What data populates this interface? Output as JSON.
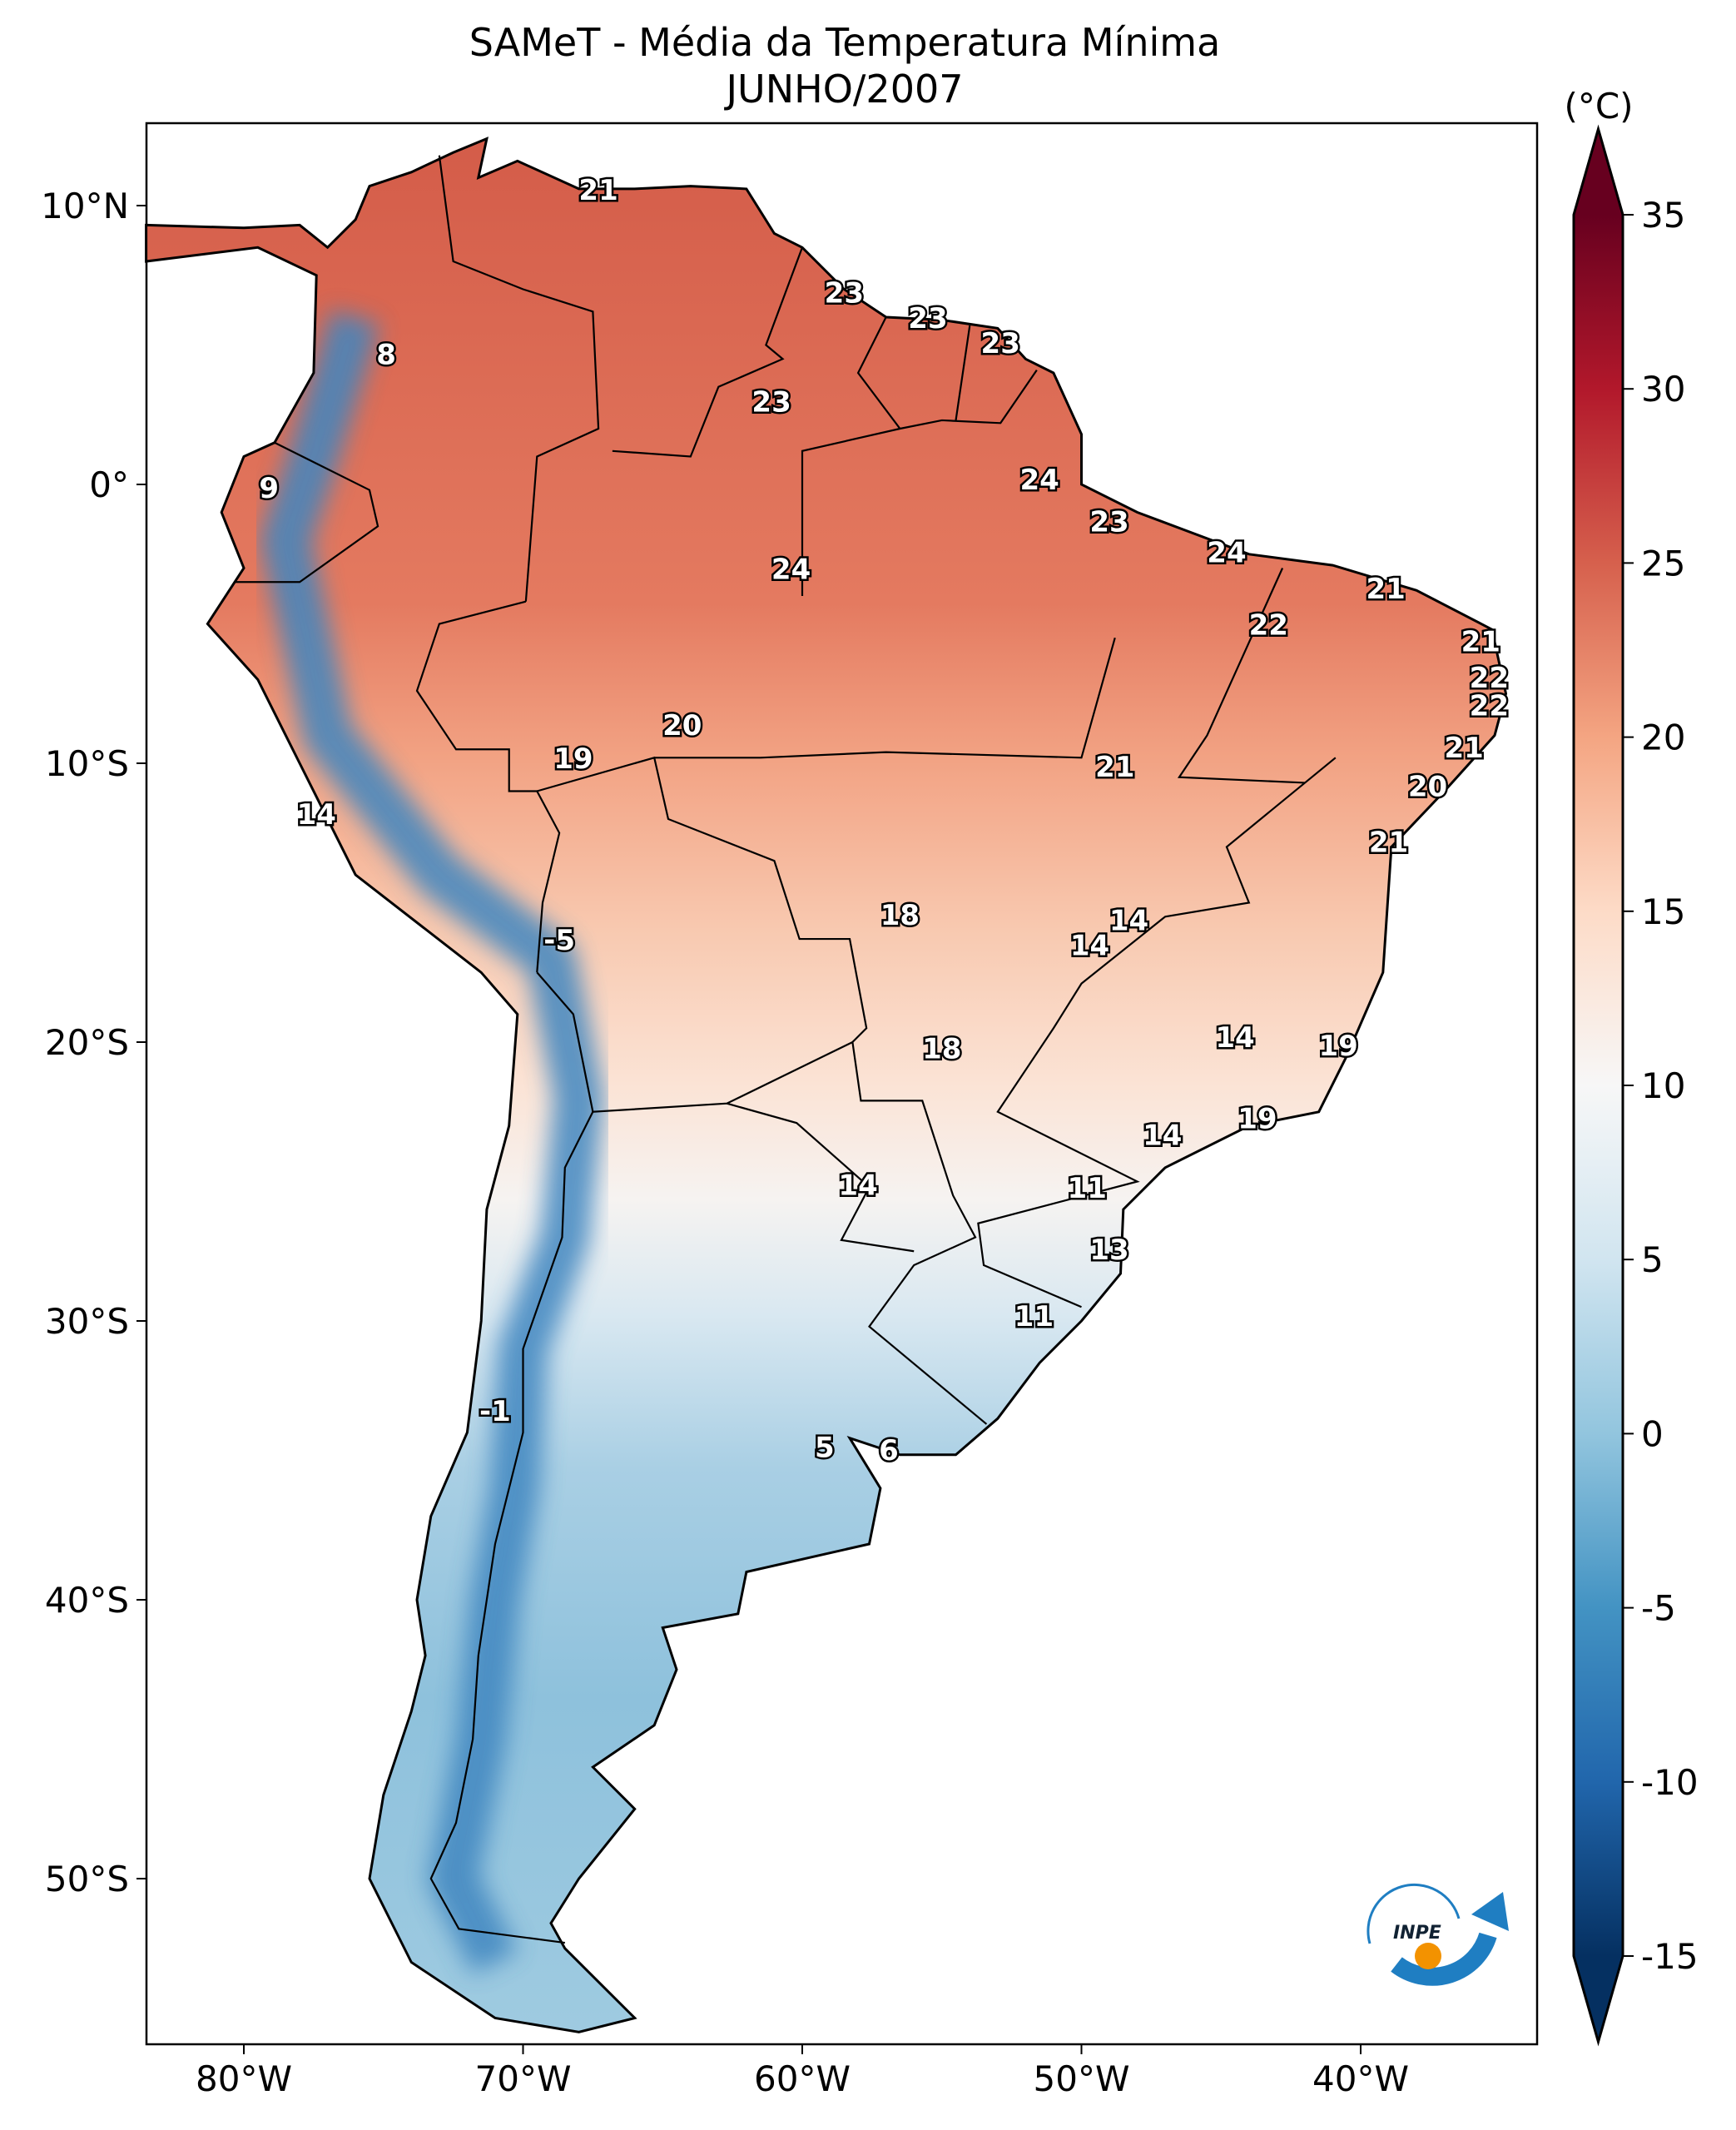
{
  "title": "SAMeT - Média da Temperatura Mínima",
  "subtitle": "JUNHO/2007",
  "colorbar": {
    "unit_label": "(°C)",
    "ticks": [
      "35",
      "30",
      "25",
      "20",
      "15",
      "10",
      "5",
      "0",
      "-5",
      "-10",
      "-15"
    ],
    "tick_values": [
      35,
      30,
      25,
      20,
      15,
      10,
      5,
      0,
      -5,
      -10,
      -15
    ],
    "range": [
      -15,
      35
    ],
    "colors": [
      "#053061",
      "#2166ac",
      "#4393c3",
      "#92c5de",
      "#d1e5f0",
      "#f7f7f7",
      "#fddbc7",
      "#f4a582",
      "#d6604d",
      "#b2182b",
      "#67001f"
    ]
  },
  "axes": {
    "lon_ticks": [
      {
        "v": -80,
        "label": "80°W"
      },
      {
        "v": -70,
        "label": "70°W"
      },
      {
        "v": -60,
        "label": "60°W"
      },
      {
        "v": -50,
        "label": "50°W"
      },
      {
        "v": -40,
        "label": "40°W"
      }
    ],
    "lat_ticks": [
      {
        "v": 10,
        "label": "10°N"
      },
      {
        "v": 0,
        "label": "0°"
      },
      {
        "v": -10,
        "label": "10°S"
      },
      {
        "v": -20,
        "label": "20°S"
      },
      {
        "v": -30,
        "label": "30°S"
      },
      {
        "v": -40,
        "label": "40°S"
      },
      {
        "v": -50,
        "label": "50°S"
      }
    ],
    "lon_range": [
      -83.5,
      -33.7
    ],
    "lat_range": [
      -56,
      12.9
    ]
  },
  "logo": {
    "text": "INPE"
  },
  "chart_data": {
    "type": "heatmap",
    "title": "SAMeT - Média da Temperatura Mínima JUNHO/2007",
    "variable": "Mean minimum temperature (°C)",
    "contour_labels": [
      {
        "text": "21",
        "lon": -67.3,
        "lat": 10.5
      },
      {
        "text": "8",
        "lon": -74.9,
        "lat": 4.6
      },
      {
        "text": "23",
        "lon": -58.5,
        "lat": 6.8
      },
      {
        "text": "23",
        "lon": -55.5,
        "lat": 5.9
      },
      {
        "text": "23",
        "lon": -52.9,
        "lat": 5.0
      },
      {
        "text": "23",
        "lon": -61.1,
        "lat": 2.9
      },
      {
        "text": "9",
        "lon": -79.1,
        "lat": -0.2
      },
      {
        "text": "24",
        "lon": -51.5,
        "lat": 0.1
      },
      {
        "text": "23",
        "lon": -49.0,
        "lat": -1.4
      },
      {
        "text": "24",
        "lon": -44.8,
        "lat": -2.5
      },
      {
        "text": "24",
        "lon": -60.4,
        "lat": -3.1
      },
      {
        "text": "21",
        "lon": -39.1,
        "lat": -3.8
      },
      {
        "text": "22",
        "lon": -43.3,
        "lat": -5.1
      },
      {
        "text": "21",
        "lon": -35.7,
        "lat": -5.7
      },
      {
        "text": "22",
        "lon": -35.4,
        "lat": -7.0
      },
      {
        "text": "22",
        "lon": -35.4,
        "lat": -8.0
      },
      {
        "text": "20",
        "lon": -64.3,
        "lat": -8.7
      },
      {
        "text": "21",
        "lon": -36.3,
        "lat": -9.5
      },
      {
        "text": "19",
        "lon": -68.2,
        "lat": -9.9
      },
      {
        "text": "21",
        "lon": -48.8,
        "lat": -10.2
      },
      {
        "text": "20",
        "lon": -37.6,
        "lat": -10.9
      },
      {
        "text": "14",
        "lon": -77.4,
        "lat": -11.9
      },
      {
        "text": "21",
        "lon": -39.0,
        "lat": -12.9
      },
      {
        "text": "18",
        "lon": -56.5,
        "lat": -15.5
      },
      {
        "text": "14",
        "lon": -48.3,
        "lat": -15.7
      },
      {
        "text": "-5",
        "lon": -68.7,
        "lat": -16.4
      },
      {
        "text": "14",
        "lon": -49.7,
        "lat": -16.6
      },
      {
        "text": "18",
        "lon": -55.0,
        "lat": -20.3
      },
      {
        "text": "14",
        "lon": -44.5,
        "lat": -19.9
      },
      {
        "text": "19",
        "lon": -40.8,
        "lat": -20.2
      },
      {
        "text": "19",
        "lon": -43.7,
        "lat": -22.8
      },
      {
        "text": "14",
        "lon": -47.1,
        "lat": -23.4
      },
      {
        "text": "14",
        "lon": -58.0,
        "lat": -25.2
      },
      {
        "text": "11",
        "lon": -49.8,
        "lat": -25.3
      },
      {
        "text": "13",
        "lon": -49.0,
        "lat": -27.5
      },
      {
        "text": "11",
        "lon": -51.7,
        "lat": -29.9
      },
      {
        "text": "-1",
        "lon": -71.0,
        "lat": -33.3
      },
      {
        "text": "5",
        "lon": -59.2,
        "lat": -34.6
      },
      {
        "text": "6",
        "lon": -56.9,
        "lat": -34.7
      }
    ]
  }
}
